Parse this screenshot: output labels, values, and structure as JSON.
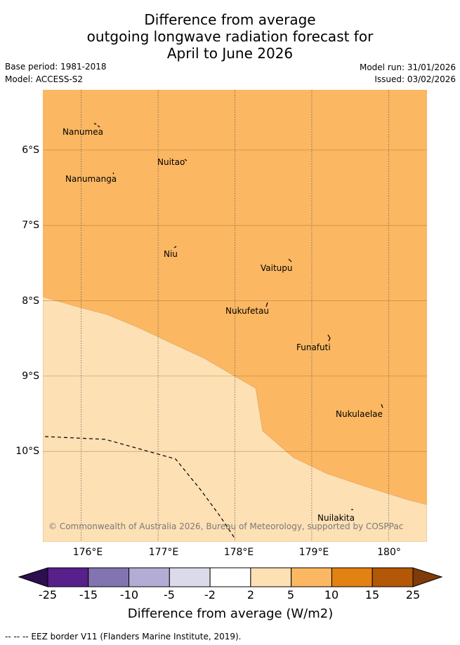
{
  "title": {
    "line1": "Difference from average",
    "line2": "outgoing longwave radiation forecast for",
    "line3": "April to June 2026"
  },
  "meta": {
    "base_period": "Base period: 1981-2018",
    "model": "Model: ACCESS-S2",
    "model_run": "Model run: 31/01/2026",
    "issued": "Issued: 03/02/2026"
  },
  "map": {
    "lon_range": [
      175.5,
      180.5
    ],
    "lat_range": [
      -11.2,
      -5.2
    ],
    "lon_ticks": [
      {
        "value": 176,
        "label": "176°E"
      },
      {
        "value": 177,
        "label": "177°E"
      },
      {
        "value": 178,
        "label": "178°E"
      },
      {
        "value": 179,
        "label": "179°E"
      },
      {
        "value": 180,
        "label": "180°"
      }
    ],
    "lat_ticks": [
      {
        "value": -6,
        "label": "6°S"
      },
      {
        "value": -7,
        "label": "7°S"
      },
      {
        "value": -8,
        "label": "8°S"
      },
      {
        "value": -9,
        "label": "9°S"
      },
      {
        "value": -10,
        "label": "10°S"
      }
    ],
    "places": [
      {
        "name": "Nanumea",
        "lon": 176.13,
        "lat": -5.68
      },
      {
        "name": "Nuitao",
        "lon": 177.3,
        "lat": -6.1
      },
      {
        "name": "Nanumanga",
        "lon": 176.35,
        "lat": -6.3
      },
      {
        "name": "Niu",
        "lon": 177.15,
        "lat": -7.3
      },
      {
        "name": "Vaitupu",
        "lon": 178.68,
        "lat": -7.48
      },
      {
        "name": "Nukufetau",
        "lon": 178.38,
        "lat": -8.03
      },
      {
        "name": "Funafuti",
        "lon": 179.2,
        "lat": -8.52
      },
      {
        "name": "Nukulaelae",
        "lon": 179.85,
        "lat": -9.4
      },
      {
        "name": "Nuilakita",
        "lon": 179.5,
        "lat": -10.74
      }
    ],
    "colors": {
      "band_5_10": "#fbb762",
      "band_2_5": "#fde0b4"
    },
    "copyright": "© Commonwealth of Australia 2026, Bureau of Meteorology, supported by COSPPac"
  },
  "colorbar": {
    "ticks": [
      "-25",
      "-15",
      "-10",
      "-5",
      "-2",
      "2",
      "5",
      "10",
      "15",
      "25"
    ],
    "colors": [
      "#58208a",
      "#8274b0",
      "#b3acd4",
      "#dadaeb",
      "#ffffff",
      "#fde0b4",
      "#fbb762",
      "#e18213",
      "#b35806"
    ],
    "extend_low": "#2d0e4e",
    "extend_high": "#7f3b08",
    "label": "Difference from average (W/m2)"
  },
  "footer": "--  --  -- EEZ border V11 (Flanders Marine Institute, 2019)."
}
